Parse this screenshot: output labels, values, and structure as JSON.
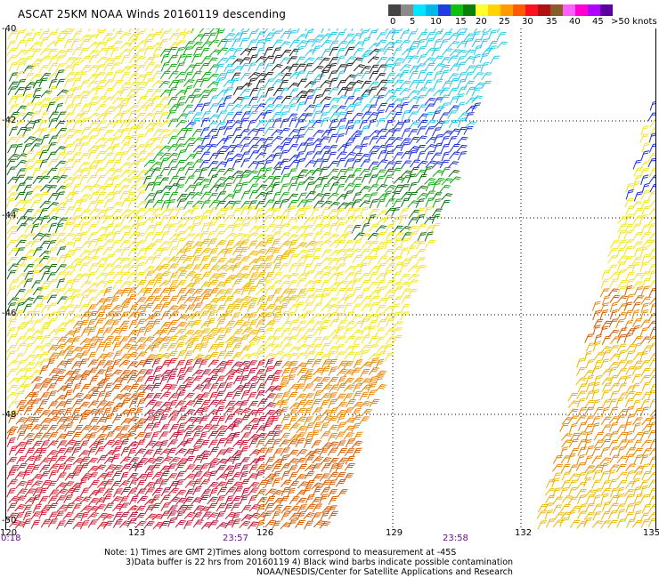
{
  "title": "ASCAT 25KM NOAA Winds 20160119 descending",
  "legend": {
    "colors": [
      "#444444",
      "#8a8a8a",
      "#00e5ff",
      "#00b8e8",
      "#1f3fe0",
      "#10c010",
      "#0a7f0a",
      "#ffff30",
      "#ffd400",
      "#ff9d00",
      "#ff5a00",
      "#ff1020",
      "#b01010",
      "#8b5a2b",
      "#ff60ff",
      "#ff00d0",
      "#b000ff",
      "#5a00a0"
    ],
    "labels": [
      "0",
      "5",
      "10",
      "15",
      "20",
      "25",
      "30",
      "35",
      "40",
      "45",
      ">50 knots"
    ]
  },
  "latitudes": [
    "-40",
    "-42",
    "-44",
    "-46",
    "-48",
    "-50"
  ],
  "longitudes": [
    "120",
    "123",
    "126",
    "129",
    "132",
    "135"
  ],
  "times": [
    "0:18",
    "23:57",
    "23:58"
  ],
  "notes": {
    "line1": "Note: 1) Times are GMT 2)Times along bottom correspond to measurement at -45S",
    "line2": "3)Data buffer is 22 hrs from 20160119 4) Black wind barbs indicate possible contamination",
    "line3": "NOAA/NESDIS/Center for Satellite Applications and Research"
  },
  "map_data": {
    "extent": {
      "lon": [
        120,
        135
      ],
      "lat": [
        -40,
        -50
      ]
    },
    "barb_colors": {
      "black": "#222222",
      "cyan": "#22c8e6",
      "blue": "#1a2fd8",
      "green": "#12a812",
      "dkgreen": "#0c6e0c",
      "yellow": "#f5e31a",
      "gold": "#ecb800",
      "orange": "#e88400",
      "dkorange": "#d35a00",
      "red": "#cc1c2c",
      "crimson": "#b3123a"
    }
  }
}
